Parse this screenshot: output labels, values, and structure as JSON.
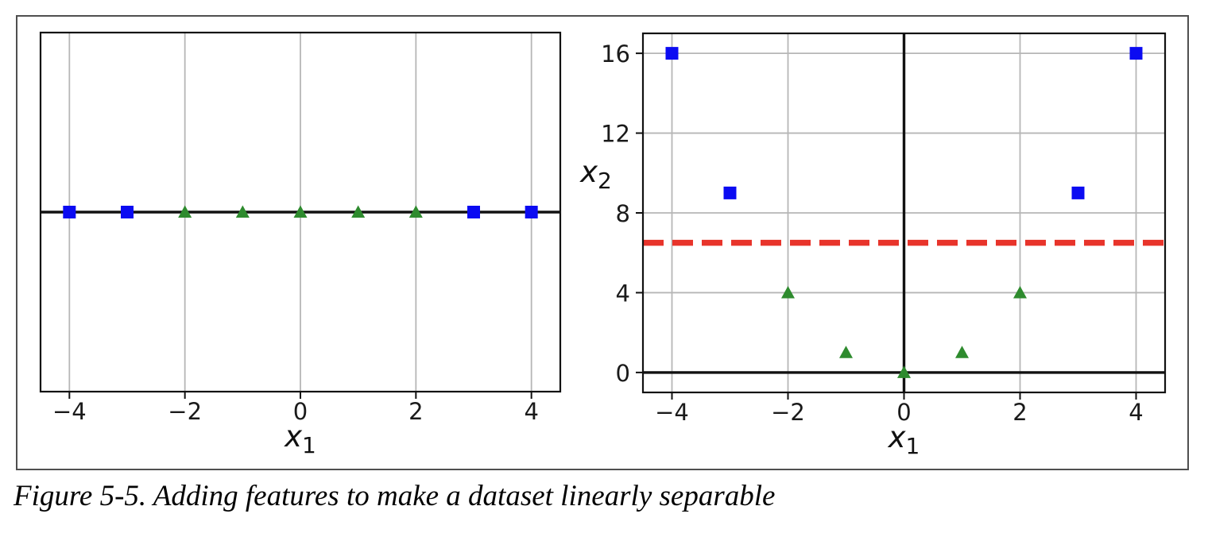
{
  "figure": {
    "caption": "Figure 5-5. Adding features to make a dataset linearly separable"
  },
  "colors": {
    "class0_marker": "#0b0bf2",
    "class1_marker": "#2e8b2e",
    "separator_line": "#e8342b",
    "grid": "#b6b6b6",
    "axis": "#111111",
    "tick_text": "#1a1a1a",
    "frame_border": "#4f4f4f"
  },
  "chart_data": [
    {
      "type": "scatter",
      "title": "",
      "xlabel": {
        "base": "x",
        "sub": "1"
      },
      "ylabel": null,
      "xlim": [
        -4.5,
        4.5
      ],
      "ylim": [
        -0.2,
        0.2
      ],
      "x_ticks": [
        -4,
        -2,
        0,
        2,
        4
      ],
      "x_tick_labels": [
        "−4",
        "−2",
        "0",
        "2",
        "4"
      ],
      "y_ticks": [],
      "y_tick_labels": [],
      "grid": "x-only",
      "legend": "none",
      "ref_lines": [
        {
          "kind": "axhline",
          "y": 0
        }
      ],
      "series": [
        {
          "name": "class-0-squares",
          "marker": "square",
          "points": [
            [
              -4,
              0
            ],
            [
              -3,
              0
            ],
            [
              3,
              0
            ],
            [
              4,
              0
            ]
          ]
        },
        {
          "name": "class-1-triangles",
          "marker": "triangle",
          "points": [
            [
              -2,
              0
            ],
            [
              -1,
              0
            ],
            [
              0,
              0
            ],
            [
              1,
              0
            ],
            [
              2,
              0
            ]
          ]
        }
      ]
    },
    {
      "type": "scatter",
      "title": "",
      "xlabel": {
        "base": "x",
        "sub": "1"
      },
      "ylabel": {
        "base": "x",
        "sub": "2"
      },
      "xlim": [
        -4.5,
        4.5
      ],
      "ylim": [
        -1,
        17
      ],
      "x_ticks": [
        -4,
        -2,
        0,
        2,
        4
      ],
      "x_tick_labels": [
        "−4",
        "−2",
        "0",
        "2",
        "4"
      ],
      "y_ticks": [
        0,
        4,
        8,
        12,
        16
      ],
      "y_tick_labels": [
        "0",
        "4",
        "8",
        "12",
        "16"
      ],
      "grid": "both",
      "legend": "none",
      "ref_lines": [
        {
          "kind": "axhline",
          "y": 0
        },
        {
          "kind": "axvline",
          "x": 0
        },
        {
          "kind": "separator-dashed",
          "y": 6.5
        }
      ],
      "series": [
        {
          "name": "class-0-squares",
          "marker": "square",
          "points": [
            [
              -4,
              16
            ],
            [
              -3,
              9
            ],
            [
              3,
              9
            ],
            [
              4,
              16
            ]
          ]
        },
        {
          "name": "class-1-triangles",
          "marker": "triangle",
          "points": [
            [
              -2,
              4
            ],
            [
              -1,
              1
            ],
            [
              0,
              0
            ],
            [
              1,
              1
            ],
            [
              2,
              4
            ]
          ]
        }
      ]
    }
  ]
}
